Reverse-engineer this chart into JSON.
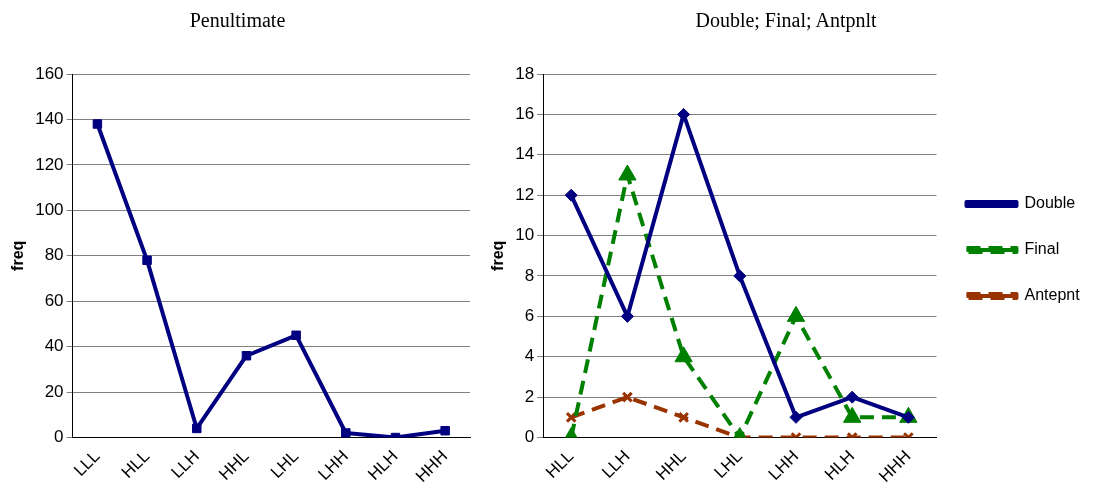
{
  "chart_data": [
    {
      "type": "line",
      "title": "Penultimate",
      "ylabel": "freq",
      "categories": [
        "LLL",
        "HLL",
        "LLH",
        "HHL",
        "LHL",
        "LHH",
        "HLH",
        "HHH"
      ],
      "series": [
        {
          "color": "#000080",
          "values": [
            138,
            78,
            4,
            36,
            45,
            2,
            0,
            3
          ],
          "marker": "square",
          "line_style": "solid"
        }
      ],
      "ylim": [
        0,
        160
      ],
      "yticks": [
        0,
        20,
        40,
        60,
        80,
        100,
        120,
        140,
        160
      ],
      "grid": "y",
      "legend": false
    },
    {
      "type": "line",
      "title": "Double; Final; Antpnlt",
      "ylabel": "freq",
      "categories": [
        "HLL",
        "LLH",
        "HHL",
        "LHL",
        "LHH",
        "HLH",
        "HHH"
      ],
      "series": [
        {
          "name": "Double",
          "color": "#000080",
          "values": [
            12,
            6,
            16,
            8,
            1,
            2,
            1
          ],
          "marker": "diamond",
          "line_style": "solid"
        },
        {
          "name": "Final",
          "color": "#008000",
          "values": [
            0,
            13,
            4,
            0,
            6,
            1,
            1
          ],
          "marker": "triangle",
          "line_style": "dashed"
        },
        {
          "name": "Antepnt",
          "color": "#993300",
          "values": [
            1,
            2,
            1,
            0,
            0,
            0,
            0
          ],
          "marker": "cross",
          "line_style": "dashed"
        }
      ],
      "ylim": [
        0,
        18
      ],
      "yticks": [
        0,
        2,
        4,
        6,
        8,
        10,
        12,
        14,
        16,
        18
      ],
      "grid": "y",
      "legend": "right"
    }
  ]
}
